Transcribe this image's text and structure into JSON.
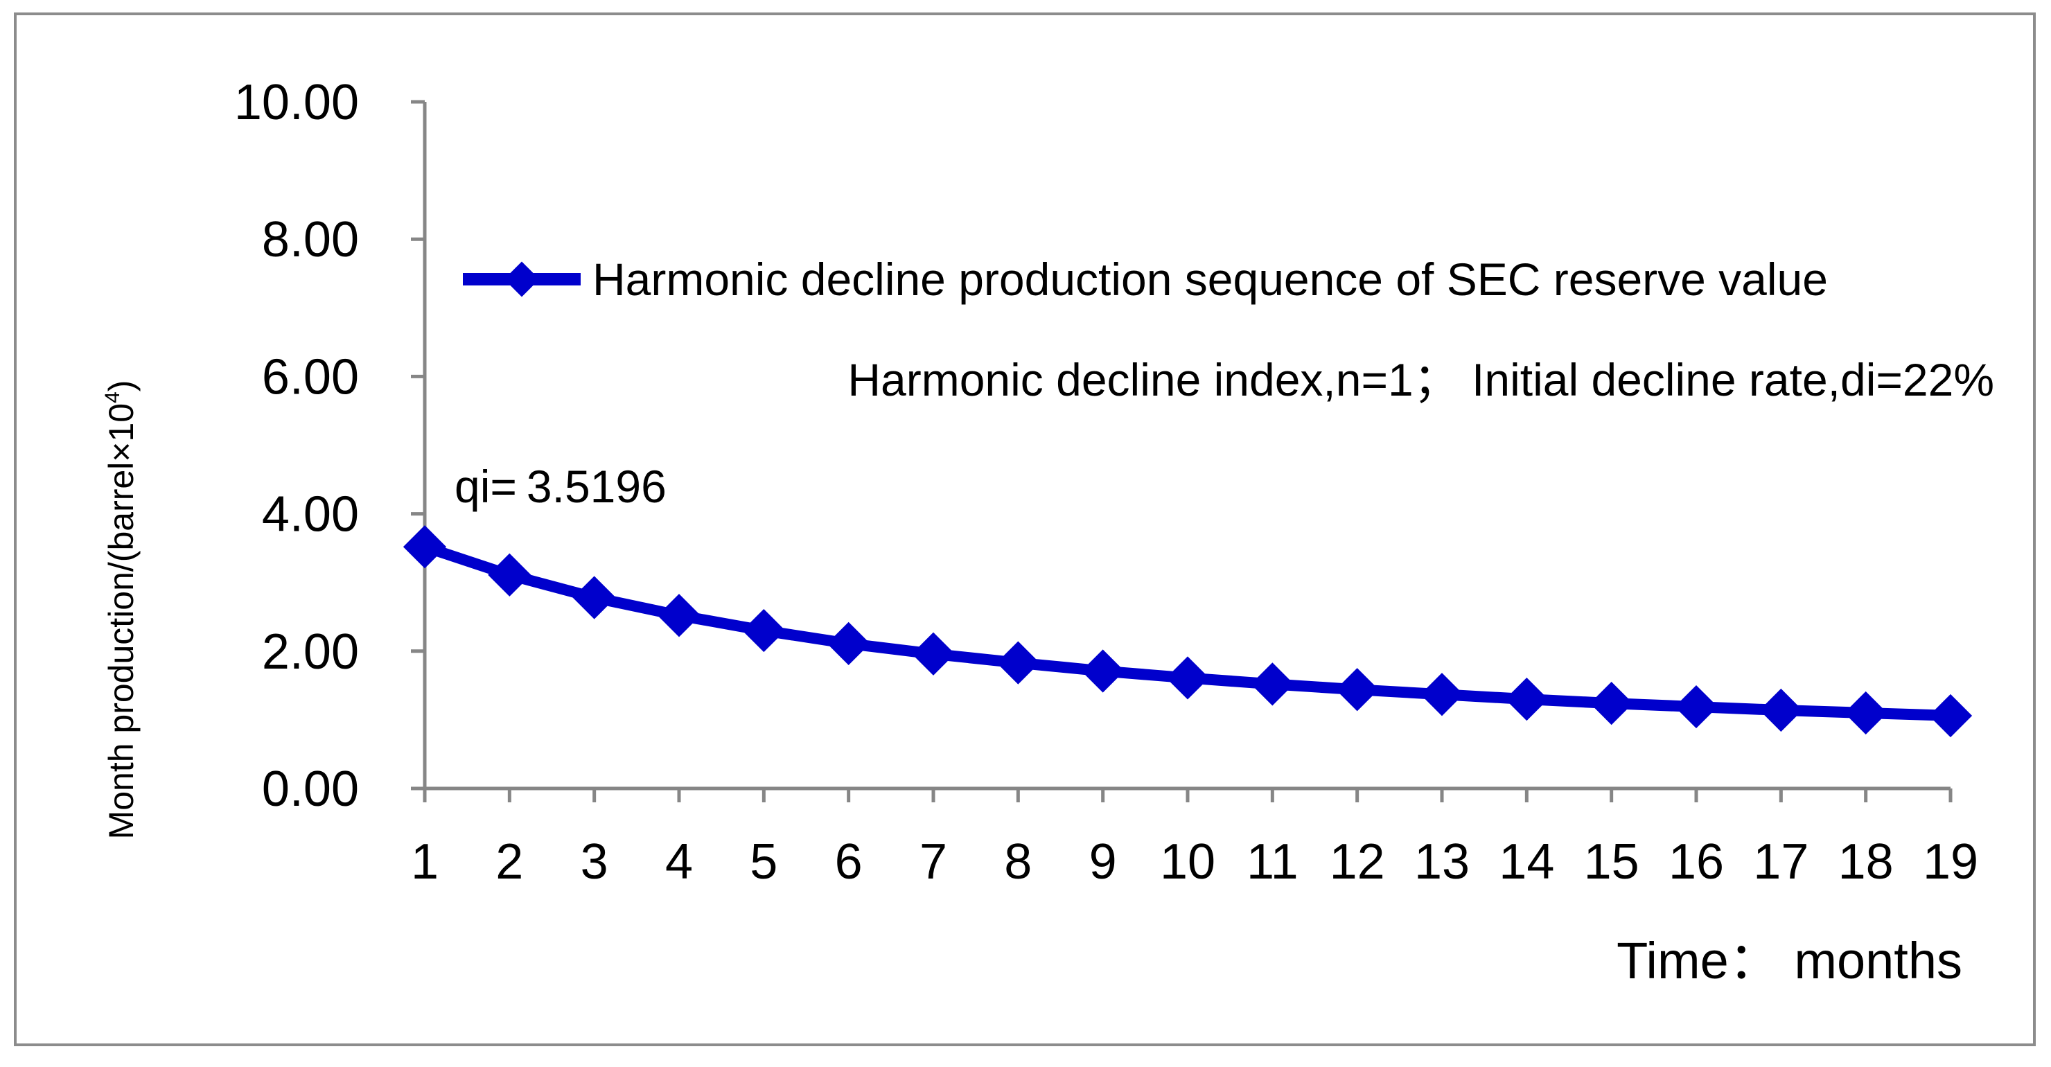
{
  "chart_data": {
    "type": "line",
    "title": "",
    "xlabel": "Time： months",
    "ylabel_base": "Month production/(barrel×10",
    "ylabel_sup": "4",
    "ylabel_close": ")",
    "ylim": [
      0,
      10
    ],
    "yticks": [
      "0.00",
      "2.00",
      "4.00",
      "6.00",
      "8.00",
      "10.00"
    ],
    "grid": false,
    "legend_position": "top-right",
    "x": [
      1,
      2,
      3,
      4,
      5,
      6,
      7,
      8,
      9,
      10,
      11,
      12,
      13,
      14,
      15,
      16,
      17,
      18,
      19
    ],
    "series": [
      {
        "name": "Harmonic decline production sequence of SEC reserve value",
        "color": "#0000cc",
        "values": [
          3.5196,
          3.11,
          2.78,
          2.52,
          2.3,
          2.11,
          1.96,
          1.83,
          1.71,
          1.61,
          1.52,
          1.44,
          1.37,
          1.3,
          1.24,
          1.19,
          1.14,
          1.1,
          1.06
        ]
      }
    ],
    "annotations": {
      "decline_params": "Harmonic decline index,n=1；  Initial decline rate,di=22%",
      "qi_label": "qi=",
      "qi_value": "3.5196"
    }
  }
}
